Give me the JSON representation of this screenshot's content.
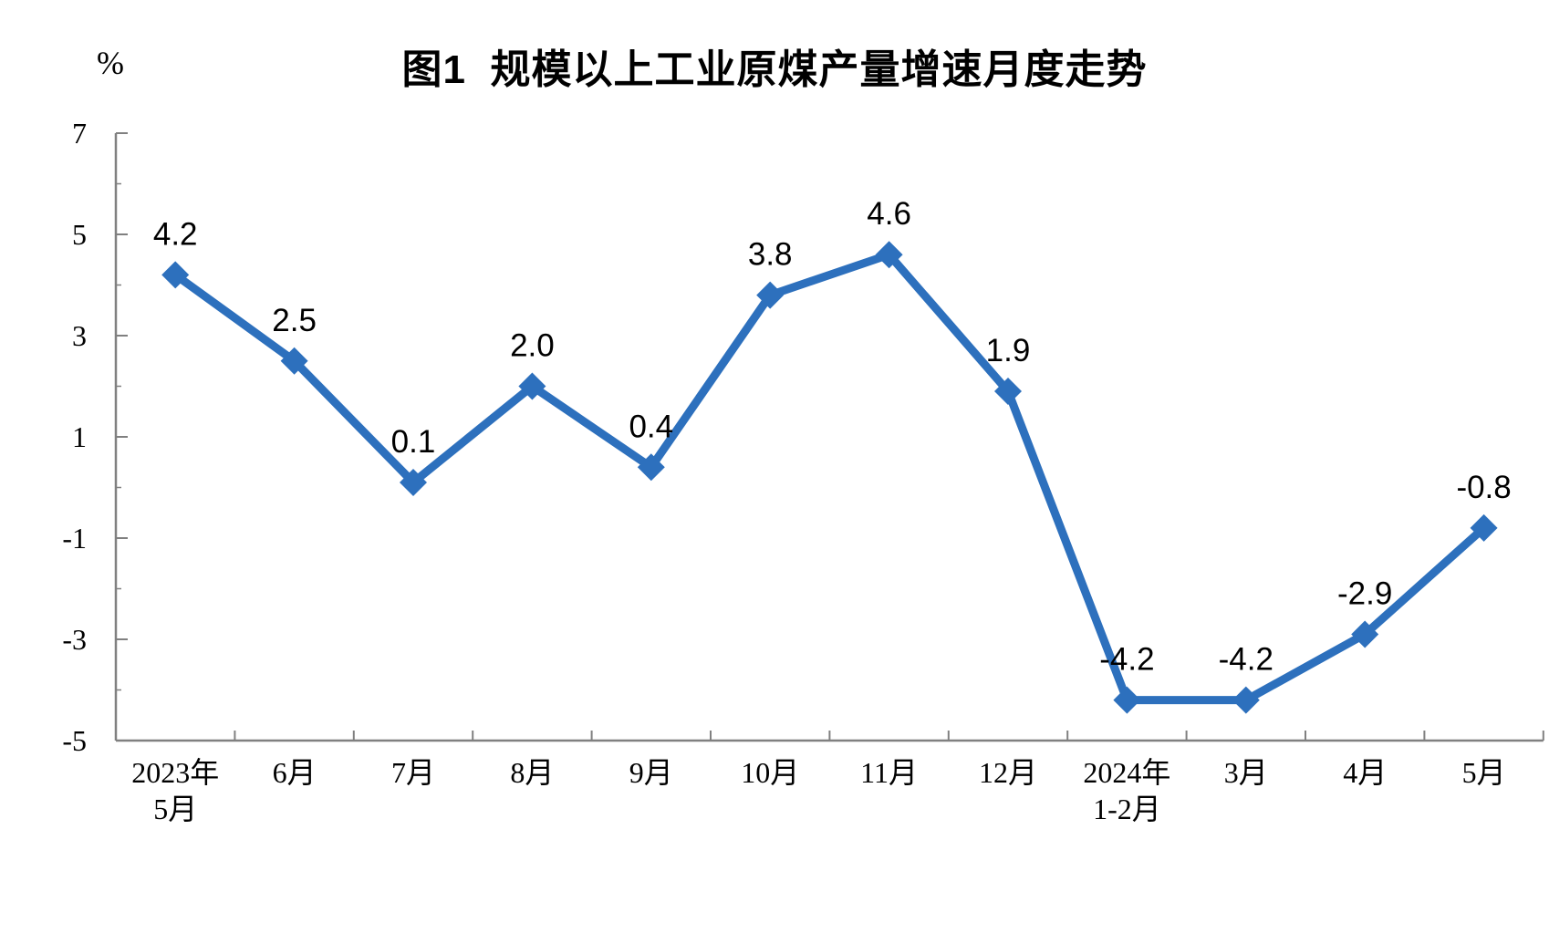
{
  "chart_data": {
    "type": "line",
    "title": "图1  规模以上工业原煤产量增速月度走势",
    "unit_label": "%",
    "categories": [
      [
        "2023年",
        "5月"
      ],
      [
        "6月"
      ],
      [
        "7月"
      ],
      [
        "8月"
      ],
      [
        "9月"
      ],
      [
        "10月"
      ],
      [
        "11月"
      ],
      [
        "12月"
      ],
      [
        "2024年",
        "1-2月"
      ],
      [
        "3月"
      ],
      [
        "4月"
      ],
      [
        "5月"
      ]
    ],
    "series": [
      {
        "name": "规模以上工业原煤产量增速",
        "values": [
          4.2,
          2.5,
          0.1,
          2.0,
          0.4,
          3.8,
          4.6,
          1.9,
          -4.2,
          -4.2,
          -2.9,
          -0.8
        ],
        "data_labels": [
          "4.2",
          "2.5",
          "0.1",
          "2.0",
          "0.4",
          "3.8",
          "4.6",
          "1.9",
          "-4.2",
          "-4.2",
          "-2.9",
          "-0.8"
        ]
      }
    ],
    "ylim": [
      -5,
      7
    ],
    "yticks": [
      7,
      5,
      3,
      1,
      -1,
      -3,
      -5
    ],
    "minor_yticks": [
      6,
      4,
      2,
      0,
      -2,
      -4
    ],
    "grid": false,
    "legend_position": "none",
    "marker_shape": "diamond",
    "colors": {
      "line": "#2D70BD",
      "marker": "#2D70BD",
      "data_label": "#000000",
      "axis": "#808080",
      "background": "#FFFFFF"
    }
  }
}
